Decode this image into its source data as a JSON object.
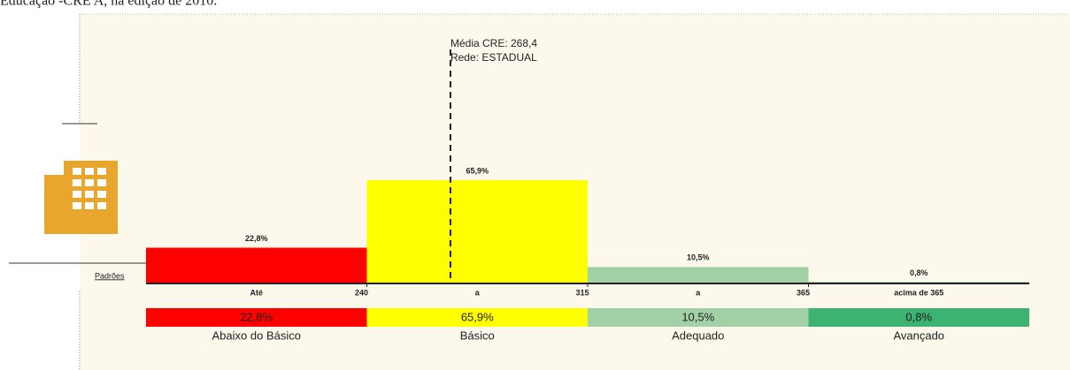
{
  "chart_data": {
    "type": "bar",
    "title": "Educação -CRE A, na edição de 2010.",
    "categories": [
      "Abaixo do Básico",
      "Básico",
      "Adequado",
      "Avançado"
    ],
    "values": [
      22.8,
      65.9,
      10.5,
      0.8
    ],
    "value_labels": [
      "22,8%",
      "65,9%",
      "10,5%",
      "0,8%"
    ],
    "colors": [
      "#ff0000",
      "#ffff00",
      "#a2d1a5",
      "#3cb371"
    ],
    "ylim": [
      0,
      100
    ],
    "xticks": [
      240,
      315,
      365
    ],
    "range_labels": [
      "Até",
      "a",
      "a",
      "acima de 365"
    ],
    "axis_label": "Padrões",
    "mean": 268.4,
    "annotation": [
      "Média CRE: 268,4",
      "Rede: ESTADUAL"
    ]
  }
}
